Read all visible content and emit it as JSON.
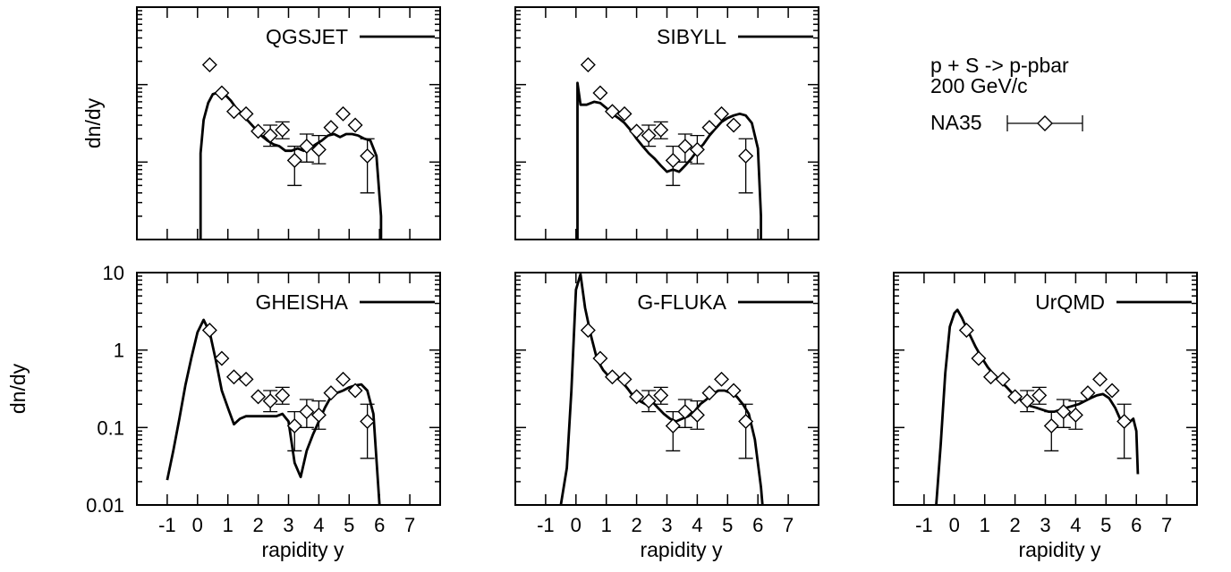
{
  "chart_data": {
    "type": "line",
    "ylog": true,
    "xlim": [
      -2,
      8
    ],
    "ylim": [
      0.01,
      10
    ],
    "x_ticks": [
      -1,
      0,
      1,
      2,
      3,
      4,
      5,
      6,
      7
    ],
    "y_ticks": [
      0.01,
      0.1,
      1,
      10
    ],
    "y_tick_labels": [
      "0.01",
      "0.1",
      "1",
      "10"
    ],
    "xlabel": "rapidity y",
    "ylabel": "dn/dy",
    "annotation": {
      "line1": "p + S -> p-pbar",
      "line2": "200 GeV/c"
    },
    "data_legend": "NA35",
    "data": {
      "x": [
        0.4,
        0.8,
        1.2,
        1.6,
        2.0,
        2.4,
        2.8,
        3.2,
        3.6,
        4.0,
        4.4,
        4.8,
        5.2,
        5.6
      ],
      "y": [
        1.8,
        0.78,
        0.45,
        0.42,
        0.25,
        0.22,
        0.26,
        0.105,
        0.16,
        0.145,
        0.28,
        0.42,
        0.3,
        0.12
      ],
      "yerr_low": [
        1.8,
        0.78,
        0.45,
        0.42,
        0.25,
        0.16,
        0.2,
        0.05,
        0.1,
        0.095,
        0.28,
        0.42,
        0.3,
        0.04
      ],
      "yerr_high": [
        1.8,
        0.78,
        0.45,
        0.42,
        0.25,
        0.3,
        0.33,
        0.16,
        0.23,
        0.22,
        0.28,
        0.42,
        0.3,
        0.2
      ],
      "xerr": 0.2
    },
    "panels": [
      {
        "label": "QGSJET",
        "x": [
          0.1,
          0.1,
          0.2,
          0.35,
          0.5,
          0.7,
          0.9,
          1.1,
          1.3,
          1.5,
          1.7,
          1.9,
          2.1,
          2.3,
          2.5,
          2.7,
          2.9,
          3.1,
          3.3,
          3.5,
          3.7,
          3.9,
          4.1,
          4.3,
          4.5,
          4.7,
          4.9,
          5.1,
          5.3,
          5.5,
          5.7,
          5.9,
          6.05,
          6.05
        ],
        "y": [
          0.01,
          0.13,
          0.35,
          0.58,
          0.75,
          0.8,
          0.75,
          0.62,
          0.48,
          0.4,
          0.33,
          0.27,
          0.22,
          0.19,
          0.17,
          0.16,
          0.14,
          0.14,
          0.15,
          0.14,
          0.15,
          0.17,
          0.19,
          0.22,
          0.23,
          0.21,
          0.23,
          0.23,
          0.22,
          0.2,
          0.19,
          0.12,
          0.02,
          0.01
        ]
      },
      {
        "label": "SIBYLL",
        "x": [
          0.05,
          0.05,
          0.15,
          0.35,
          0.6,
          0.8,
          1.0,
          1.2,
          1.4,
          1.6,
          1.8,
          2.0,
          2.2,
          2.4,
          2.6,
          2.8,
          3.0,
          3.2,
          3.4,
          3.6,
          3.8,
          4.0,
          4.2,
          4.4,
          4.6,
          4.8,
          5.0,
          5.2,
          5.4,
          5.6,
          5.8,
          6.0,
          6.1,
          6.1
        ],
        "y": [
          0.01,
          1.05,
          0.55,
          0.55,
          0.6,
          0.58,
          0.5,
          0.42,
          0.37,
          0.32,
          0.26,
          0.2,
          0.16,
          0.13,
          0.11,
          0.09,
          0.075,
          0.08,
          0.075,
          0.09,
          0.11,
          0.14,
          0.17,
          0.22,
          0.27,
          0.33,
          0.37,
          0.4,
          0.42,
          0.4,
          0.32,
          0.15,
          0.02,
          0.01
        ]
      },
      {
        "label": "GHEISHA",
        "x": [
          -1.0,
          -0.8,
          -0.6,
          -0.4,
          -0.2,
          0.0,
          0.2,
          0.4,
          0.6,
          0.8,
          1.0,
          1.2,
          1.4,
          1.6,
          1.8,
          2.0,
          2.2,
          2.4,
          2.6,
          2.8,
          3.0,
          3.2,
          3.4,
          3.6,
          3.8,
          4.0,
          4.2,
          4.4,
          4.6,
          4.8,
          5.0,
          5.2,
          5.4,
          5.6,
          5.8,
          6.0
        ],
        "y": [
          0.021,
          0.05,
          0.13,
          0.35,
          0.8,
          1.7,
          2.45,
          1.7,
          0.75,
          0.3,
          0.18,
          0.11,
          0.13,
          0.14,
          0.14,
          0.14,
          0.14,
          0.14,
          0.14,
          0.15,
          0.12,
          0.035,
          0.023,
          0.05,
          0.08,
          0.12,
          0.18,
          0.25,
          0.28,
          0.3,
          0.33,
          0.35,
          0.36,
          0.3,
          0.15,
          0.01
        ]
      },
      {
        "label": "G-FLUKA",
        "x": [
          -0.5,
          -0.3,
          -0.15,
          0.0,
          0.15,
          0.3,
          0.5,
          0.7,
          0.9,
          1.1,
          1.3,
          1.5,
          1.7,
          1.9,
          2.1,
          2.3,
          2.5,
          2.7,
          2.9,
          3.1,
          3.3,
          3.5,
          3.7,
          3.9,
          4.1,
          4.3,
          4.5,
          4.7,
          4.9,
          5.1,
          5.3,
          5.5,
          5.7,
          5.9,
          6.1,
          6.15
        ],
        "y": [
          0.01,
          0.03,
          0.3,
          6.0,
          9.5,
          3.5,
          1.5,
          0.75,
          0.55,
          0.45,
          0.45,
          0.4,
          0.32,
          0.25,
          0.22,
          0.2,
          0.22,
          0.18,
          0.15,
          0.13,
          0.12,
          0.13,
          0.14,
          0.16,
          0.2,
          0.23,
          0.27,
          0.3,
          0.3,
          0.28,
          0.25,
          0.2,
          0.15,
          0.07,
          0.017,
          0.01
        ]
      },
      {
        "label": "UrQMD",
        "x": [
          -0.6,
          -0.45,
          -0.3,
          -0.15,
          0.0,
          0.1,
          0.25,
          0.45,
          0.7,
          0.9,
          1.1,
          1.3,
          1.5,
          1.7,
          1.9,
          2.1,
          2.3,
          2.5,
          2.7,
          2.9,
          3.1,
          3.3,
          3.5,
          3.7,
          3.9,
          4.1,
          4.3,
          4.5,
          4.7,
          4.9,
          5.1,
          5.3,
          5.5,
          5.7,
          5.9,
          6.0,
          6.05
        ],
        "y": [
          0.01,
          0.06,
          0.5,
          2.0,
          3.0,
          3.3,
          2.6,
          1.75,
          1.1,
          0.8,
          0.6,
          0.48,
          0.4,
          0.34,
          0.28,
          0.24,
          0.21,
          0.19,
          0.18,
          0.17,
          0.16,
          0.16,
          0.17,
          0.18,
          0.19,
          0.2,
          0.22,
          0.24,
          0.26,
          0.27,
          0.24,
          0.18,
          0.12,
          0.11,
          0.13,
          0.09,
          0.025
        ]
      }
    ]
  }
}
